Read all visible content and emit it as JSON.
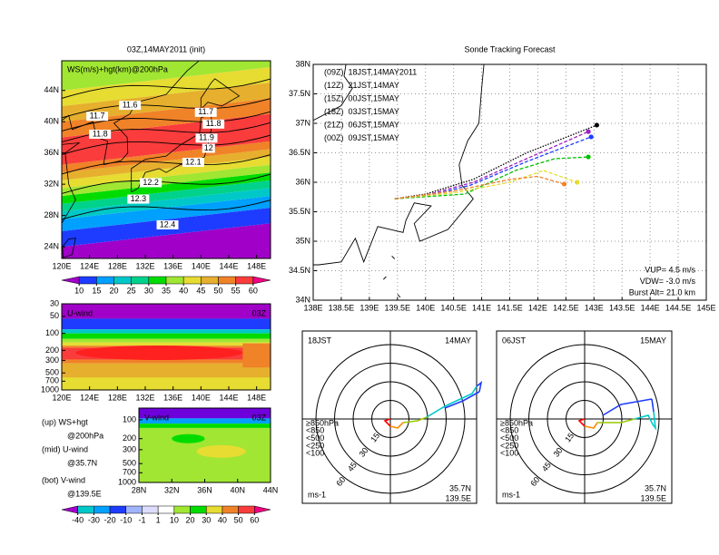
{
  "chart_data": [
    {
      "type": "map",
      "title": "03Z,14MAY2011 (init)",
      "subtitle": "WS(m/s)+hgt(km)@200hPa",
      "xlim": [
        120,
        150
      ],
      "xticks": [
        {
          "value": 120,
          "label": "120E"
        },
        {
          "value": 124,
          "label": "124E"
        },
        {
          "value": 128,
          "label": "128E"
        },
        {
          "value": 132,
          "label": "132E"
        },
        {
          "value": 136,
          "label": "136E"
        },
        {
          "value": 140,
          "label": "140E"
        },
        {
          "value": 144,
          "label": "144E"
        },
        {
          "value": 148,
          "label": "148E"
        }
      ],
      "ylim": [
        22.5,
        47.8
      ],
      "yticks": [
        {
          "value": 24,
          "label": "24N"
        },
        {
          "value": 28,
          "label": "28N"
        },
        {
          "value": 32,
          "label": "32N"
        },
        {
          "value": 36,
          "label": "36N"
        },
        {
          "value": 40,
          "label": "40N"
        },
        {
          "value": 44,
          "label": "44N"
        }
      ],
      "contour_labels": {
        "x": [
          129.8,
          125.1,
          125.5,
          140.7,
          141.8,
          140.8,
          141.1,
          138.9,
          132.8,
          131.0,
          135.2
        ],
        "y": [
          42.1,
          40.7,
          38.4,
          41.2,
          39.7,
          37.9,
          36.6,
          34.8,
          32.2,
          30.1,
          26.8
        ],
        "values": [
          11.6,
          11.7,
          11.8,
          11.7,
          11.8,
          11.9,
          12,
          12.1,
          12.2,
          12.3,
          12.4
        ]
      },
      "colorbar": {
        "ticks": [
          10,
          15,
          20,
          25,
          30,
          35,
          40,
          45,
          50,
          55,
          60
        ],
        "colors": [
          "#a000c8",
          "#1e3cff",
          "#00a0ff",
          "#00c8c8",
          "#00d28c",
          "#00dc00",
          "#a0e632",
          "#e6dc32",
          "#e6af2d",
          "#f08228",
          "#fa3c3c",
          "#f00082"
        ]
      }
    },
    {
      "type": "section",
      "title": "U-wind",
      "subtitle": "03Z",
      "xlim": [
        120,
        150
      ],
      "xticks": [
        {
          "value": 120,
          "label": "120E"
        },
        {
          "value": 124,
          "label": "124E"
        },
        {
          "value": 128,
          "label": "128E"
        },
        {
          "value": 132,
          "label": "132E"
        },
        {
          "value": 136,
          "label": "136E"
        },
        {
          "value": 140,
          "label": "140E"
        },
        {
          "value": 144,
          "label": "144E"
        },
        {
          "value": 148,
          "label": "148E"
        }
      ],
      "ylim": [
        1000,
        30
      ],
      "yticks": [
        30,
        50,
        100,
        200,
        300,
        500,
        700,
        1000
      ],
      "log_scale": true
    },
    {
      "type": "section",
      "title": "V-wind",
      "subtitle": "03Z",
      "xlim": [
        28,
        44
      ],
      "xticks": [
        {
          "value": 28,
          "label": "28N"
        },
        {
          "value": 32,
          "label": "32N"
        },
        {
          "value": 36,
          "label": "36N"
        },
        {
          "value": 40,
          "label": "40N"
        },
        {
          "value": 44,
          "label": "44N"
        }
      ],
      "ylim": [
        1000,
        65
      ],
      "yticks": [
        100,
        200,
        300,
        500,
        700,
        1000
      ],
      "log_scale": true,
      "colorbar": {
        "ticks": [
          -40,
          -30,
          -20,
          -10,
          -1,
          1,
          10,
          20,
          30,
          40,
          50,
          60
        ],
        "colors": [
          "#a000c8",
          "#00c8c8",
          "#00a0ff",
          "#1e3cff",
          "#a0b4ff",
          "#dcdcff",
          "#ffffff",
          "#a0e632",
          "#00dc00",
          "#e6dc32",
          "#f08228",
          "#fa3c3c",
          "#f00082"
        ]
      }
    },
    {
      "type": "line",
      "title": "Sonde Tracking Forecast",
      "grid": true,
      "xlim": [
        138,
        145
      ],
      "xticks": [
        {
          "value": 138,
          "label": "138E"
        },
        {
          "value": 138.5,
          "label": "138.5E"
        },
        {
          "value": 139,
          "label": "139E"
        },
        {
          "value": 139.5,
          "label": "139.5E"
        },
        {
          "value": 140,
          "label": "140E"
        },
        {
          "value": 140.5,
          "label": "140.5E"
        },
        {
          "value": 141,
          "label": "141E"
        },
        {
          "value": 141.5,
          "label": "141.5E"
        },
        {
          "value": 142,
          "label": "142E"
        },
        {
          "value": 142.5,
          "label": "142.5E"
        },
        {
          "value": 143,
          "label": "143E"
        },
        {
          "value": 143.5,
          "label": "143.5E"
        },
        {
          "value": 144,
          "label": "144E"
        },
        {
          "value": 144.5,
          "label": "144.5E"
        },
        {
          "value": 145,
          "label": "145E"
        }
      ],
      "ylim": [
        34,
        38
      ],
      "yticks": [
        {
          "value": 34,
          "label": "34N"
        },
        {
          "value": 34.5,
          "label": "34.5N"
        },
        {
          "value": 35,
          "label": "35N"
        },
        {
          "value": 35.5,
          "label": "35.5N"
        },
        {
          "value": 36,
          "label": "36N"
        },
        {
          "value": 36.5,
          "label": "36.5N"
        },
        {
          "value": 37,
          "label": "37N"
        },
        {
          "value": 37.5,
          "label": "37.5N"
        },
        {
          "value": 38,
          "label": "38N"
        }
      ],
      "series": [
        {
          "name": "(09Z)  18JST,14MAY2011",
          "color": "#000000",
          "linestyle": "dotted",
          "x": [
            139.45,
            140.0,
            140.85,
            141.8,
            143.05
          ],
          "values": [
            35.72,
            35.8,
            36.05,
            36.5,
            36.97
          ]
        },
        {
          "name": "(12Z)  21JST,14MAY",
          "color": "#a020c0",
          "linestyle": "dashed",
          "x": [
            139.45,
            140.0,
            140.85,
            141.8,
            142.9
          ],
          "values": [
            35.72,
            35.78,
            36.0,
            36.4,
            36.86
          ]
        },
        {
          "name": "(15Z)  00JST,15MAY",
          "color": "#1e3cff",
          "linestyle": "dashed",
          "x": [
            139.45,
            140.0,
            140.8,
            141.8,
            142.95
          ],
          "values": [
            35.72,
            35.76,
            35.95,
            36.35,
            36.77
          ]
        },
        {
          "name": "(18Z)  03JST,15MAY",
          "color": "#00c000",
          "linestyle": "dashed",
          "x": [
            139.45,
            140.7,
            141.6,
            142.3,
            142.9
          ],
          "values": [
            35.72,
            35.8,
            36.2,
            36.4,
            36.43
          ]
        },
        {
          "name": "(21Z)  06JST,15MAY",
          "color": "#e6dc32",
          "linestyle": "dashed",
          "x": [
            139.45,
            140.5,
            141.5,
            142.1,
            142.7
          ],
          "values": [
            35.72,
            35.82,
            36.0,
            36.2,
            36.0
          ]
        },
        {
          "name": "(00Z)  09JST,15MAY",
          "color": "#f08228",
          "linestyle": "dashed",
          "x": [
            139.45,
            140.5,
            141.5,
            142.0,
            142.47
          ],
          "values": [
            35.72,
            35.85,
            36.05,
            36.1,
            35.97
          ]
        }
      ],
      "annotations": [
        "VUP= 4.5 m/s",
        "VDW= -3.0 m/s",
        "Burst Alt= 21.0 km"
      ]
    },
    {
      "type": "polar",
      "title": "18JST",
      "subtitle": "14MAY",
      "rlim": [
        0,
        60
      ],
      "rticks": [
        15,
        30,
        45,
        60
      ],
      "unit": "ms-1",
      "location": [
        "35.7N",
        "139.5E"
      ],
      "levels": [
        {
          "label": "≥850hPa",
          "color": "#ff0000"
        },
        {
          "label": "<850",
          "color": "#ff8c00"
        },
        {
          "label": "<500",
          "color": "#9ac800"
        },
        {
          "label": "<250",
          "color": "#00c8c8"
        },
        {
          "label": "<100",
          "color": "#1e3cff"
        }
      ]
    },
    {
      "type": "polar",
      "title": "06JST",
      "subtitle": "15MAY",
      "rlim": [
        0,
        60
      ],
      "rticks": [
        15,
        30,
        45,
        60
      ],
      "unit": "ms-1",
      "location": [
        "35.7N",
        "139.5E"
      ],
      "levels": [
        {
          "label": "≥850hPa",
          "color": "#ff0000"
        },
        {
          "label": "<850",
          "color": "#ff8c00"
        },
        {
          "label": "<500",
          "color": "#9ac800"
        },
        {
          "label": "<250",
          "color": "#00c8c8"
        },
        {
          "label": "<100",
          "color": "#1e3cff"
        }
      ]
    }
  ],
  "notes": [
    "(up) WS+hgt",
    "@200hPa",
    "(mid) U-wind",
    "@35.7N",
    "(bot) V-wind",
    "@139.5E"
  ]
}
